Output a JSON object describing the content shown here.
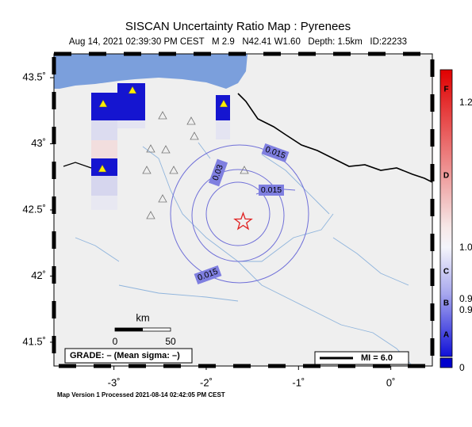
{
  "map": {
    "title": "SISCAN Uncertainty Ratio Map : Pyrenees",
    "subtitle": "Aug 14, 2021 02:39:30 PM CEST   M 2.9   N42.41 W1.60   Depth: 1.5km   ID:22233",
    "xlim": [
      -3.65,
      0.45
    ],
    "ylim": [
      41.32,
      43.68
    ],
    "lon_ticks": [
      {
        "value": -3,
        "label": "-3˚"
      },
      {
        "value": -2,
        "label": "-2˚"
      },
      {
        "value": -1,
        "label": "-1˚"
      },
      {
        "value": 0,
        "label": "0˚"
      }
    ],
    "lat_ticks": [
      {
        "value": 43.5,
        "label": "43.5˚"
      },
      {
        "value": 43,
        "label": "43˚"
      },
      {
        "value": 42.5,
        "label": "42.5˚"
      },
      {
        "value": 42,
        "label": "42˚"
      },
      {
        "value": 41.5,
        "label": "41.5˚"
      }
    ],
    "epicenter": {
      "lon": -1.6,
      "lat": 42.41
    },
    "contour_labels": [
      "0.015",
      "0.03",
      "0.015",
      "0.015"
    ],
    "scale": {
      "title": "km",
      "start": "0",
      "end": "50"
    },
    "grade": "GRADE: – (Mean sigma: –)",
    "mi_legend": "MI = 6.0",
    "footer": "Map Version 1 Processed 2021-08-14 02:42:05 PM CEST",
    "colorbar": {
      "letters": [
        "F",
        "D",
        "C",
        "B",
        "A"
      ],
      "values": [
        "1.2",
        "1.0",
        "0.9",
        "0.9",
        "0"
      ]
    }
  }
}
